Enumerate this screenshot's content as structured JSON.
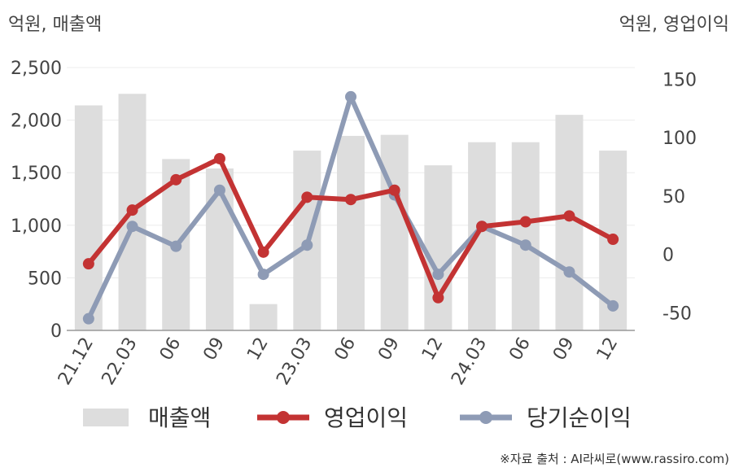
{
  "units": {
    "left": "억원, 매출액",
    "right": "억원, 영업이익"
  },
  "source": "※자료 출처 : AI라씨로(www.rassiro.com)",
  "chart_data": {
    "type": "bar+line",
    "categories": [
      "21.12",
      "22.03",
      "06",
      "09",
      "12",
      "23.03",
      "06",
      "09",
      "12",
      "24.03",
      "06",
      "09",
      "12"
    ],
    "series": [
      {
        "name": "매출액",
        "type": "bar",
        "axis": "left",
        "color": "#dddddd",
        "values": [
          2140,
          2250,
          1630,
          1540,
          250,
          1710,
          1850,
          1860,
          1570,
          1790,
          1790,
          2050,
          1710
        ]
      },
      {
        "name": "영업이익",
        "type": "line",
        "axis": "right",
        "color": "#c33333",
        "values": [
          -8,
          38,
          64,
          82,
          2,
          49,
          47,
          55,
          -37,
          24,
          28,
          33,
          13
        ]
      },
      {
        "name": "당기순이익",
        "type": "line",
        "axis": "right",
        "color": "#8e9bb5",
        "values": [
          -55,
          24,
          7,
          55,
          -17,
          8,
          135,
          51,
          -17,
          24,
          8,
          -15,
          -44
        ]
      }
    ],
    "y_left": {
      "min": 0,
      "max": 2500,
      "ticks": [
        0,
        500,
        1000,
        1500,
        2000,
        2500
      ],
      "tick_labels": [
        "0",
        "500",
        "1,000",
        "1,500",
        "2,000",
        "2,500"
      ]
    },
    "y_right": {
      "min": -65,
      "max": 160,
      "ticks": [
        -50,
        0,
        50,
        100,
        150
      ],
      "tick_labels": [
        "-50",
        "0",
        "50",
        "100",
        "150"
      ]
    },
    "grid": true,
    "legend_position": "bottom"
  }
}
